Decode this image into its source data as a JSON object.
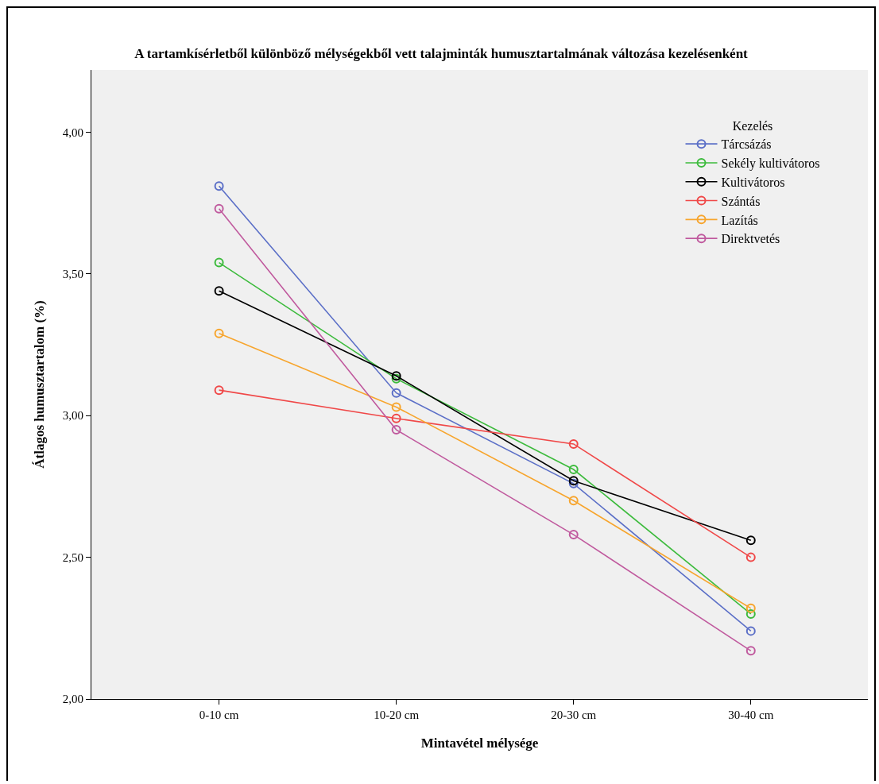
{
  "chart_data": {
    "type": "line",
    "title": "A tartamkísérletből különböző mélységekből vett talajminták humusztartalmának változása kezelésenként",
    "xlabel": "Mintavétel mélysége",
    "ylabel": "Átlagos humusztartalom (%)",
    "legend_title": "Kezelés",
    "categories": [
      "0-10 cm",
      "10-20 cm",
      "20-30 cm",
      "30-40 cm"
    ],
    "series": [
      {
        "name": "Tárcsázás",
        "color": "#5b6fc7",
        "values": [
          3.81,
          3.08,
          2.76,
          2.24
        ]
      },
      {
        "name": "Sekély kultivátoros",
        "color": "#3dbb3d",
        "values": [
          3.54,
          3.13,
          2.81,
          2.3
        ]
      },
      {
        "name": "Kultivátoros",
        "color": "#000000",
        "values": [
          3.44,
          3.14,
          2.77,
          2.56
        ]
      },
      {
        "name": "Szántás",
        "color": "#f04848",
        "values": [
          3.09,
          2.99,
          2.9,
          2.5
        ]
      },
      {
        "name": "Lazítás",
        "color": "#f7a52d",
        "values": [
          3.29,
          3.03,
          2.7,
          2.32
        ]
      },
      {
        "name": "Direktvetés",
        "color": "#c05a9e",
        "values": [
          3.73,
          2.95,
          2.58,
          2.17
        ]
      }
    ],
    "ylim": [
      2,
      4.22
    ],
    "yticks": [
      {
        "value": 2,
        "label": "2,00"
      },
      {
        "value": 2.5,
        "label": "2,50"
      },
      {
        "value": 3,
        "label": "3,00"
      },
      {
        "value": 3.5,
        "label": "3,50"
      },
      {
        "value": 4,
        "label": "4,00"
      }
    ],
    "grid": false,
    "legend": "top right",
    "marker": "circle",
    "line_style": "solid"
  }
}
